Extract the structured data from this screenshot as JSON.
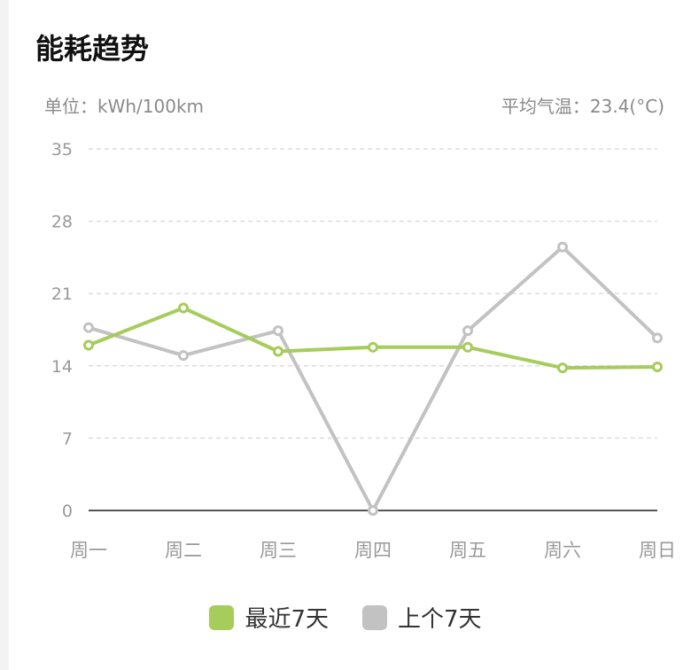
{
  "header": {
    "title": "能耗趋势",
    "unit": "单位：kWh/100km",
    "avg_temp": "平均气温：23.4(°C)"
  },
  "colors": {
    "recent": "#a6cc5c",
    "previous": "#c2c2c2",
    "grid": "#dddddd",
    "axis": "#555555",
    "tick": "#999999"
  },
  "chart_data": {
    "type": "line",
    "categories": [
      "周一",
      "周二",
      "周三",
      "周四",
      "周五",
      "周六",
      "周日"
    ],
    "yticks": [
      0,
      7,
      14,
      21,
      28,
      35
    ],
    "ylim": [
      0,
      35
    ],
    "grid": true,
    "legend_position": "bottom",
    "series": [
      {
        "name": "最近7天",
        "values": [
          16.0,
          19.6,
          15.4,
          15.8,
          15.8,
          13.8,
          13.9
        ]
      },
      {
        "name": "上个7天",
        "values": [
          17.7,
          15.0,
          17.4,
          0,
          17.4,
          25.5,
          16.7
        ]
      }
    ]
  }
}
